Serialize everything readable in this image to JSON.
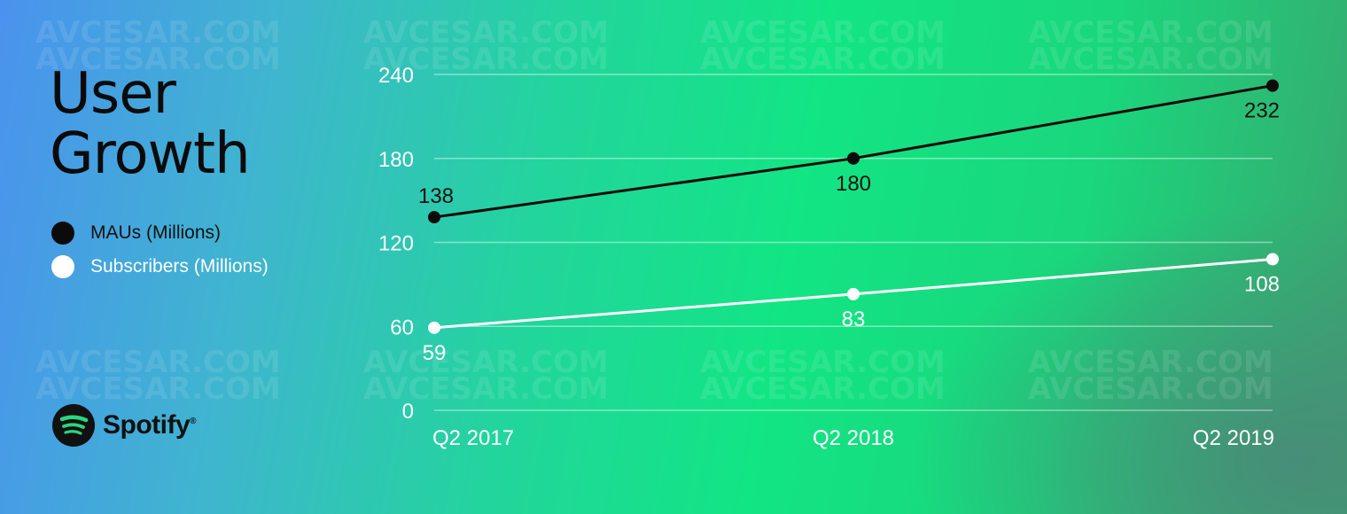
{
  "title_lines": [
    "User",
    "Growth"
  ],
  "legend": [
    {
      "label": "MAUs (Millions)",
      "color": "#0b0b0b",
      "text_color": "#111111"
    },
    {
      "label": "Subscribers (Millions)",
      "color": "#ffffff",
      "text_color": "#ffffff"
    }
  ],
  "brand": {
    "name": "Spotify",
    "icon": "spotify-logo-icon",
    "mark": "®"
  },
  "watermark": "AVCESAR.COM",
  "chart_data": {
    "type": "line",
    "categories": [
      "Q2 2017",
      "Q2 2018",
      "Q2 2019"
    ],
    "series": [
      {
        "name": "MAUs (Millions)",
        "values": [
          138,
          180,
          232
        ],
        "color": "#0b0b0b",
        "label_color": "#111111"
      },
      {
        "name": "Subscribers (Millions)",
        "values": [
          59,
          83,
          108
        ],
        "color": "#ffffff",
        "label_color": "#ffffff"
      }
    ],
    "yticks": [
      0,
      60,
      120,
      180,
      240
    ],
    "ylim": [
      0,
      240
    ],
    "grid": true,
    "legend_position": "left"
  }
}
